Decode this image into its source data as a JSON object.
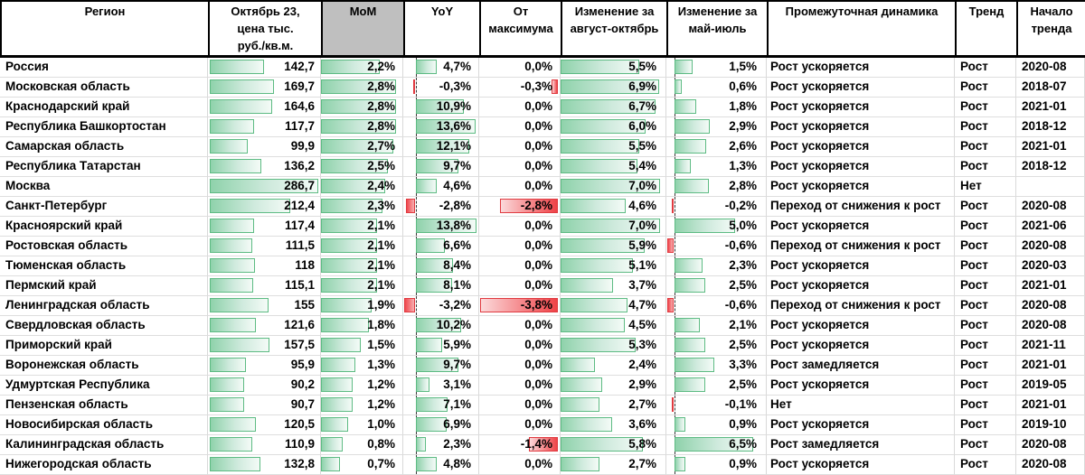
{
  "header": {
    "cols": [
      {
        "label": "Регион"
      },
      {
        "label": "Октябрь 23,\nцена тыс.\nруб./кв.м."
      },
      {
        "label": "MoM",
        "gray": true
      },
      {
        "label": "YoY"
      },
      {
        "label": "От максимума"
      },
      {
        "label": "Изменение за август-октябрь"
      },
      {
        "label": "Изменение за май-июль"
      },
      {
        "label": "Промежуточная динамика"
      },
      {
        "label": "Тренд"
      },
      {
        "label": "Начало тренда"
      }
    ]
  },
  "chart_data": {
    "type": "table",
    "columns": [
      "Регион",
      "Октябрь 23, цена тыс. руб./кв.м.",
      "MoM",
      "YoY",
      "От максимума",
      "Изменение за август-октябрь",
      "Изменение за май-июль",
      "Промежуточная динамика",
      "Тренд",
      "Начало тренда"
    ],
    "scales": {
      "price_max": 286.7,
      "price_area": 97,
      "mom_max": 2.8,
      "mom_area": 92,
      "yoy_pos_max": 13.8,
      "yoy_neg_max": 3.2,
      "yoy_axis": 17,
      "yoy_area": 81,
      "from_max_neg": 3.8,
      "from_max_area": 97,
      "aug_max": 7.0,
      "aug_area": 95,
      "may_pos_max": 6.5,
      "may_neg_max": 0.6,
      "may_axis": 8.5,
      "may_area": 79
    },
    "rows": [
      {
        "region": "Россия",
        "price": {
          "t": "142,7",
          "v": 142.7
        },
        "mom": {
          "t": "2,2%",
          "v": 2.2
        },
        "yoy": {
          "t": "4,7%",
          "v": 4.7
        },
        "frommax": {
          "t": "0,0%",
          "v": 0
        },
        "aug": {
          "t": "5,5%",
          "v": 5.5
        },
        "may": {
          "t": "1,5%",
          "v": 1.5
        },
        "dyn": "Рост ускоряется",
        "trend": "Рост",
        "start": "2020-08"
      },
      {
        "region": "Московская область",
        "price": {
          "t": "169,7",
          "v": 169.7
        },
        "mom": {
          "t": "2,8%",
          "v": 2.8
        },
        "yoy": {
          "t": "-0,3%",
          "v": -0.3
        },
        "frommax": {
          "t": "-0,3%",
          "v": -0.3
        },
        "aug": {
          "t": "6,9%",
          "v": 6.9
        },
        "may": {
          "t": "0,6%",
          "v": 0.6
        },
        "dyn": "Рост ускоряется",
        "trend": "Рост",
        "start": "2018-07"
      },
      {
        "region": "Краснодарский край",
        "price": {
          "t": "164,6",
          "v": 164.6
        },
        "mom": {
          "t": "2,8%",
          "v": 2.8
        },
        "yoy": {
          "t": "10,9%",
          "v": 10.9
        },
        "frommax": {
          "t": "0,0%",
          "v": 0
        },
        "aug": {
          "t": "6,7%",
          "v": 6.7
        },
        "may": {
          "t": "1,8%",
          "v": 1.8
        },
        "dyn": "Рост ускоряется",
        "trend": "Рост",
        "start": "2021-01"
      },
      {
        "region": "Республика Башкортостан",
        "price": {
          "t": "117,7",
          "v": 117.7
        },
        "mom": {
          "t": "2,8%",
          "v": 2.8
        },
        "yoy": {
          "t": "13,6%",
          "v": 13.6
        },
        "frommax": {
          "t": "0,0%",
          "v": 0
        },
        "aug": {
          "t": "6,0%",
          "v": 6.0
        },
        "may": {
          "t": "2,9%",
          "v": 2.9
        },
        "dyn": "Рост ускоряется",
        "trend": "Рост",
        "start": "2018-12"
      },
      {
        "region": "Самарская область",
        "price": {
          "t": "99,9",
          "v": 99.9
        },
        "mom": {
          "t": "2,7%",
          "v": 2.7
        },
        "yoy": {
          "t": "12,1%",
          "v": 12.1
        },
        "frommax": {
          "t": "0,0%",
          "v": 0
        },
        "aug": {
          "t": "5,5%",
          "v": 5.5
        },
        "may": {
          "t": "2,6%",
          "v": 2.6
        },
        "dyn": "Рост ускоряется",
        "trend": "Рост",
        "start": "2021-01"
      },
      {
        "region": "Республика Татарстан",
        "price": {
          "t": "136,2",
          "v": 136.2
        },
        "mom": {
          "t": "2,5%",
          "v": 2.5
        },
        "yoy": {
          "t": "9,7%",
          "v": 9.7
        },
        "frommax": {
          "t": "0,0%",
          "v": 0
        },
        "aug": {
          "t": "5,4%",
          "v": 5.4
        },
        "may": {
          "t": "1,3%",
          "v": 1.3
        },
        "dyn": "Рост ускоряется",
        "trend": "Рост",
        "start": "2018-12"
      },
      {
        "region": "Москва",
        "price": {
          "t": "286,7",
          "v": 286.7
        },
        "mom": {
          "t": "2,4%",
          "v": 2.4
        },
        "yoy": {
          "t": "4,6%",
          "v": 4.6
        },
        "frommax": {
          "t": "0,0%",
          "v": 0
        },
        "aug": {
          "t": "7,0%",
          "v": 7.0
        },
        "may": {
          "t": "2,8%",
          "v": 2.8
        },
        "dyn": "Рост ускоряется",
        "trend": "Нет",
        "start": ""
      },
      {
        "region": "Санкт-Петербург",
        "price": {
          "t": "212,4",
          "v": 212.4
        },
        "mom": {
          "t": "2,3%",
          "v": 2.3
        },
        "yoy": {
          "t": "-2,8%",
          "v": -2.8
        },
        "frommax": {
          "t": "-2,8%",
          "v": -2.8
        },
        "aug": {
          "t": "4,6%",
          "v": 4.6
        },
        "may": {
          "t": "-0,2%",
          "v": -0.2
        },
        "dyn": "Переход от снижения к рост",
        "trend": "Рост",
        "start": "2020-08"
      },
      {
        "region": "Красноярский край",
        "price": {
          "t": "117,4",
          "v": 117.4
        },
        "mom": {
          "t": "2,1%",
          "v": 2.1
        },
        "yoy": {
          "t": "13,8%",
          "v": 13.8
        },
        "frommax": {
          "t": "0,0%",
          "v": 0
        },
        "aug": {
          "t": "7,0%",
          "v": 7.0
        },
        "may": {
          "t": "5,0%",
          "v": 5.0
        },
        "dyn": "Рост ускоряется",
        "trend": "Рост",
        "start": "2021-06"
      },
      {
        "region": "Ростовская область",
        "price": {
          "t": "111,5",
          "v": 111.5
        },
        "mom": {
          "t": "2,1%",
          "v": 2.1
        },
        "yoy": {
          "t": "6,6%",
          "v": 6.6
        },
        "frommax": {
          "t": "0,0%",
          "v": 0
        },
        "aug": {
          "t": "5,9%",
          "v": 5.9
        },
        "may": {
          "t": "-0,6%",
          "v": -0.6
        },
        "dyn": "Переход от снижения к рост",
        "trend": "Рост",
        "start": "2020-08"
      },
      {
        "region": "Тюменская область",
        "price": {
          "t": "118",
          "v": 118
        },
        "mom": {
          "t": "2,1%",
          "v": 2.1
        },
        "yoy": {
          "t": "8,4%",
          "v": 8.4
        },
        "frommax": {
          "t": "0,0%",
          "v": 0
        },
        "aug": {
          "t": "5,1%",
          "v": 5.1
        },
        "may": {
          "t": "2,3%",
          "v": 2.3
        },
        "dyn": "Рост ускоряется",
        "trend": "Рост",
        "start": "2020-03"
      },
      {
        "region": "Пермский край",
        "price": {
          "t": "115,1",
          "v": 115.1
        },
        "mom": {
          "t": "2,1%",
          "v": 2.1
        },
        "yoy": {
          "t": "8,1%",
          "v": 8.1
        },
        "frommax": {
          "t": "0,0%",
          "v": 0
        },
        "aug": {
          "t": "3,7%",
          "v": 3.7
        },
        "may": {
          "t": "2,5%",
          "v": 2.5
        },
        "dyn": "Рост ускоряется",
        "trend": "Рост",
        "start": "2021-01"
      },
      {
        "region": "Ленинградская область",
        "price": {
          "t": "155",
          "v": 155
        },
        "mom": {
          "t": "1,9%",
          "v": 1.9
        },
        "yoy": {
          "t": "-3,2%",
          "v": -3.2
        },
        "frommax": {
          "t": "-3,8%",
          "v": -3.8
        },
        "aug": {
          "t": "4,7%",
          "v": 4.7
        },
        "may": {
          "t": "-0,6%",
          "v": -0.6
        },
        "dyn": "Переход от снижения к рост",
        "trend": "Рост",
        "start": "2020-08"
      },
      {
        "region": "Свердловская область",
        "price": {
          "t": "121,6",
          "v": 121.6
        },
        "mom": {
          "t": "1,8%",
          "v": 1.8
        },
        "yoy": {
          "t": "10,2%",
          "v": 10.2
        },
        "frommax": {
          "t": "0,0%",
          "v": 0
        },
        "aug": {
          "t": "4,5%",
          "v": 4.5
        },
        "may": {
          "t": "2,1%",
          "v": 2.1
        },
        "dyn": "Рост ускоряется",
        "trend": "Рост",
        "start": "2020-08"
      },
      {
        "region": "Приморский край",
        "price": {
          "t": "157,5",
          "v": 157.5
        },
        "mom": {
          "t": "1,5%",
          "v": 1.5
        },
        "yoy": {
          "t": "5,9%",
          "v": 5.9
        },
        "frommax": {
          "t": "0,0%",
          "v": 0
        },
        "aug": {
          "t": "5,3%",
          "v": 5.3
        },
        "may": {
          "t": "2,5%",
          "v": 2.5
        },
        "dyn": "Рост ускоряется",
        "trend": "Рост",
        "start": "2021-11"
      },
      {
        "region": "Воронежская область",
        "price": {
          "t": "95,9",
          "v": 95.9
        },
        "mom": {
          "t": "1,3%",
          "v": 1.3
        },
        "yoy": {
          "t": "9,7%",
          "v": 9.7
        },
        "frommax": {
          "t": "0,0%",
          "v": 0
        },
        "aug": {
          "t": "2,4%",
          "v": 2.4
        },
        "may": {
          "t": "3,3%",
          "v": 3.3
        },
        "dyn": "Рост замедляется",
        "trend": "Рост",
        "start": "2021-01"
      },
      {
        "region": "Удмуртская Республика",
        "price": {
          "t": "90,2",
          "v": 90.2
        },
        "mom": {
          "t": "1,2%",
          "v": 1.2
        },
        "yoy": {
          "t": "3,1%",
          "v": 3.1
        },
        "frommax": {
          "t": "0,0%",
          "v": 0
        },
        "aug": {
          "t": "2,9%",
          "v": 2.9
        },
        "may": {
          "t": "2,5%",
          "v": 2.5
        },
        "dyn": "Рост ускоряется",
        "trend": "Рост",
        "start": "2019-05"
      },
      {
        "region": "Пензенская область",
        "price": {
          "t": "90,7",
          "v": 90.7
        },
        "mom": {
          "t": "1,2%",
          "v": 1.2
        },
        "yoy": {
          "t": "7,1%",
          "v": 7.1
        },
        "frommax": {
          "t": "0,0%",
          "v": 0
        },
        "aug": {
          "t": "2,7%",
          "v": 2.7
        },
        "may": {
          "t": "-0,1%",
          "v": -0.1
        },
        "dyn": "Нет",
        "trend": "Рост",
        "start": "2021-01"
      },
      {
        "region": "Новосибирская область",
        "price": {
          "t": "120,5",
          "v": 120.5
        },
        "mom": {
          "t": "1,0%",
          "v": 1.0
        },
        "yoy": {
          "t": "6,9%",
          "v": 6.9
        },
        "frommax": {
          "t": "0,0%",
          "v": 0
        },
        "aug": {
          "t": "3,6%",
          "v": 3.6
        },
        "may": {
          "t": "0,9%",
          "v": 0.9
        },
        "dyn": "Рост ускоряется",
        "trend": "Рост",
        "start": "2019-10"
      },
      {
        "region": "Калининградская область",
        "price": {
          "t": "110,9",
          "v": 110.9
        },
        "mom": {
          "t": "0,8%",
          "v": 0.8
        },
        "yoy": {
          "t": "2,3%",
          "v": 2.3
        },
        "frommax": {
          "t": "-1,4%",
          "v": -1.4
        },
        "aug": {
          "t": "5,8%",
          "v": 5.8
        },
        "may": {
          "t": "6,5%",
          "v": 6.5
        },
        "dyn": "Рост замедляется",
        "trend": "Рост",
        "start": "2020-08"
      },
      {
        "region": "Нижегородская область",
        "price": {
          "t": "132,8",
          "v": 132.8
        },
        "mom": {
          "t": "0,7%",
          "v": 0.7
        },
        "yoy": {
          "t": "4,8%",
          "v": 4.8
        },
        "frommax": {
          "t": "0,0%",
          "v": 0
        },
        "aug": {
          "t": "2,7%",
          "v": 2.7
        },
        "may": {
          "t": "0,9%",
          "v": 0.9
        },
        "dyn": "Рост ускоряется",
        "trend": "Рост",
        "start": "2020-08"
      }
    ]
  },
  "colors": {
    "bar_green_border": "#5dbb83",
    "bar_green_fill": "#8fd2ab",
    "bar_red_border": "#e03a40",
    "bar_red_fill": "#f0484e",
    "header_gray": "#BFBFBF"
  }
}
